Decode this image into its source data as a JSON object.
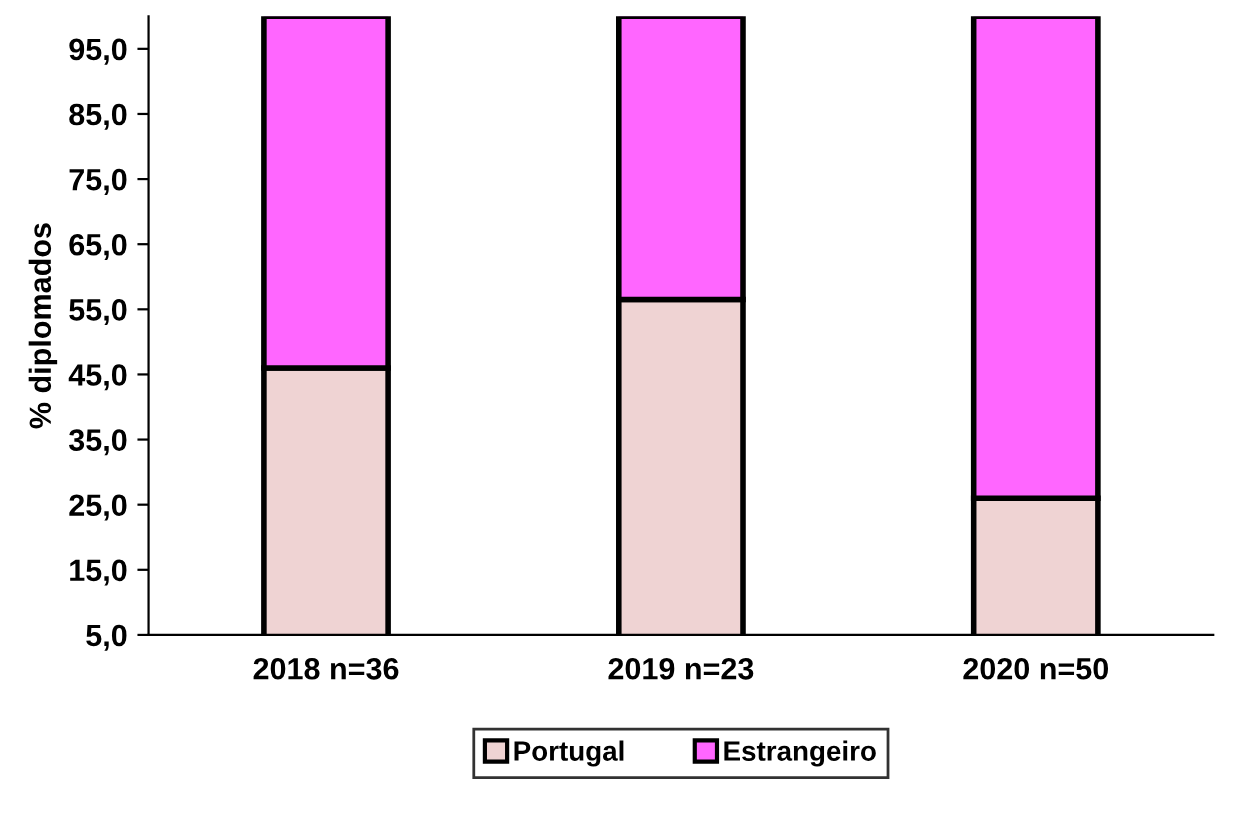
{
  "chart_data": {
    "type": "bar",
    "stacked": true,
    "ylabel": "% diplomados",
    "categories": [
      "2018 n=36",
      "2019 n=23",
      "2020 n=50"
    ],
    "series": [
      {
        "name": "Portugal",
        "color": "#efd3d3",
        "values": [
          46,
          56.5,
          26
        ]
      },
      {
        "name": "Estrangeiro",
        "color": "#ff66ff",
        "values": [
          54,
          43.5,
          74
        ]
      }
    ],
    "ylim": [
      5,
      100
    ],
    "yticks": [
      {
        "value": 5,
        "label": "5,0"
      },
      {
        "value": 15,
        "label": "15,0"
      },
      {
        "value": 25,
        "label": "25,0"
      },
      {
        "value": 35,
        "label": "35,0"
      },
      {
        "value": 45,
        "label": "45,0"
      },
      {
        "value": 55,
        "label": "55,0"
      },
      {
        "value": 65,
        "label": "65,0"
      },
      {
        "value": 75,
        "label": "75,0"
      },
      {
        "value": 85,
        "label": "85,0"
      },
      {
        "value": 95,
        "label": "95,0"
      }
    ],
    "grid": false,
    "legend": "bottom"
  }
}
